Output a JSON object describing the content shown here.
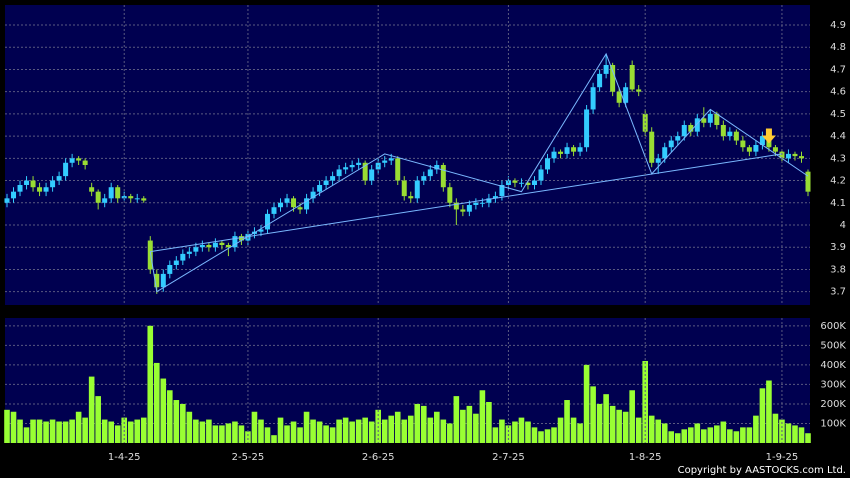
{
  "chart_data": [
    {
      "type": "candlestick",
      "candles": [
        [
          4.1,
          4.14,
          4.08,
          4.12
        ],
        [
          4.12,
          4.17,
          4.1,
          4.15
        ],
        [
          4.15,
          4.2,
          4.13,
          4.18
        ],
        [
          4.18,
          4.22,
          4.16,
          4.2
        ],
        [
          4.2,
          4.22,
          4.15,
          4.17
        ],
        [
          4.17,
          4.19,
          4.13,
          4.15
        ],
        [
          4.15,
          4.19,
          4.13,
          4.17
        ],
        [
          4.17,
          4.22,
          4.15,
          4.2
        ],
        [
          4.2,
          4.24,
          4.18,
          4.22
        ],
        [
          4.22,
          4.3,
          4.2,
          4.28
        ],
        [
          4.28,
          4.32,
          4.26,
          4.3
        ],
        [
          4.3,
          4.31,
          4.27,
          4.29
        ],
        [
          4.29,
          4.3,
          4.25,
          4.27
        ],
        [
          4.17,
          4.19,
          4.13,
          4.15
        ],
        [
          4.15,
          4.16,
          4.07,
          4.1
        ],
        [
          4.1,
          4.14,
          4.08,
          4.12
        ],
        [
          4.12,
          4.19,
          4.1,
          4.17
        ],
        [
          4.17,
          4.18,
          4.1,
          4.12
        ],
        [
          4.12,
          4.15,
          4.11,
          4.13
        ],
        [
          4.13,
          4.14,
          4.1,
          4.12
        ],
        [
          4.12,
          4.14,
          4.1,
          4.12
        ],
        [
          4.12,
          4.13,
          4.1,
          4.11
        ],
        [
          3.93,
          3.95,
          3.78,
          3.8
        ],
        [
          3.78,
          3.8,
          3.69,
          3.72
        ],
        [
          3.72,
          3.8,
          3.7,
          3.78
        ],
        [
          3.78,
          3.84,
          3.76,
          3.82
        ],
        [
          3.82,
          3.86,
          3.8,
          3.84
        ],
        [
          3.84,
          3.89,
          3.82,
          3.87
        ],
        [
          3.87,
          3.9,
          3.85,
          3.88
        ],
        [
          3.88,
          3.92,
          3.86,
          3.9
        ],
        [
          3.9,
          3.93,
          3.88,
          3.91
        ],
        [
          3.91,
          3.92,
          3.88,
          3.9
        ],
        [
          3.9,
          3.94,
          3.88,
          3.92
        ],
        [
          3.92,
          3.93,
          3.89,
          3.91
        ],
        [
          3.91,
          3.92,
          3.86,
          3.9
        ],
        [
          3.9,
          3.97,
          3.88,
          3.95
        ],
        [
          3.95,
          3.96,
          3.91,
          3.93
        ],
        [
          3.93,
          3.98,
          3.91,
          3.96
        ],
        [
          3.96,
          3.99,
          3.94,
          3.97
        ],
        [
          3.97,
          4.0,
          3.95,
          3.98
        ],
        [
          3.98,
          4.07,
          3.96,
          4.05
        ],
        [
          4.05,
          4.1,
          4.03,
          4.08
        ],
        [
          4.08,
          4.12,
          4.06,
          4.1
        ],
        [
          4.1,
          4.14,
          4.08,
          4.12
        ],
        [
          4.12,
          4.13,
          4.06,
          4.08
        ],
        [
          4.08,
          4.1,
          4.05,
          4.07
        ],
        [
          4.07,
          4.14,
          4.05,
          4.12
        ],
        [
          4.12,
          4.17,
          4.1,
          4.15
        ],
        [
          4.15,
          4.2,
          4.13,
          4.18
        ],
        [
          4.18,
          4.22,
          4.16,
          4.2
        ],
        [
          4.2,
          4.24,
          4.18,
          4.22
        ],
        [
          4.22,
          4.27,
          4.2,
          4.25
        ],
        [
          4.25,
          4.28,
          4.23,
          4.26
        ],
        [
          4.26,
          4.29,
          4.24,
          4.27
        ],
        [
          4.27,
          4.3,
          4.25,
          4.28
        ],
        [
          4.28,
          4.29,
          4.18,
          4.2
        ],
        [
          4.2,
          4.27,
          4.18,
          4.25
        ],
        [
          4.25,
          4.3,
          4.23,
          4.28
        ],
        [
          4.28,
          4.31,
          4.26,
          4.29
        ],
        [
          4.29,
          4.32,
          4.27,
          4.3
        ],
        [
          4.3,
          4.31,
          4.18,
          4.2
        ],
        [
          4.2,
          4.22,
          4.11,
          4.13
        ],
        [
          4.13,
          4.15,
          4.1,
          4.12
        ],
        [
          4.12,
          4.22,
          4.1,
          4.2
        ],
        [
          4.2,
          4.24,
          4.18,
          4.22
        ],
        [
          4.22,
          4.27,
          4.2,
          4.25
        ],
        [
          4.25,
          4.29,
          4.23,
          4.27
        ],
        [
          4.27,
          4.28,
          4.15,
          4.17
        ],
        [
          4.17,
          4.19,
          4.08,
          4.1
        ],
        [
          4.1,
          4.12,
          4.0,
          4.07
        ],
        [
          4.07,
          4.09,
          4.04,
          4.06
        ],
        [
          4.06,
          4.11,
          4.04,
          4.09
        ],
        [
          4.09,
          4.12,
          4.07,
          4.1
        ],
        [
          4.1,
          4.12,
          4.08,
          4.1
        ],
        [
          4.1,
          4.14,
          4.08,
          4.12
        ],
        [
          4.12,
          4.15,
          4.1,
          4.13
        ],
        [
          4.13,
          4.2,
          4.11,
          4.18
        ],
        [
          4.18,
          4.22,
          4.16,
          4.2
        ],
        [
          4.2,
          4.21,
          4.17,
          4.19
        ],
        [
          4.19,
          4.21,
          4.17,
          4.19
        ],
        [
          4.19,
          4.2,
          4.16,
          4.18
        ],
        [
          4.18,
          4.22,
          4.16,
          4.2
        ],
        [
          4.2,
          4.27,
          4.18,
          4.25
        ],
        [
          4.25,
          4.32,
          4.23,
          4.3
        ],
        [
          4.3,
          4.35,
          4.28,
          4.33
        ],
        [
          4.33,
          4.34,
          4.3,
          4.32
        ],
        [
          4.32,
          4.37,
          4.3,
          4.35
        ],
        [
          4.35,
          4.36,
          4.31,
          4.33
        ],
        [
          4.33,
          4.37,
          4.31,
          4.35
        ],
        [
          4.35,
          4.54,
          4.33,
          4.52
        ],
        [
          4.52,
          4.64,
          4.5,
          4.62
        ],
        [
          4.62,
          4.7,
          4.6,
          4.68
        ],
        [
          4.68,
          4.77,
          4.66,
          4.72
        ],
        [
          4.72,
          4.73,
          4.58,
          4.6
        ],
        [
          4.6,
          4.62,
          4.53,
          4.55
        ],
        [
          4.55,
          4.64,
          4.53,
          4.62
        ],
        [
          4.72,
          4.74,
          4.6,
          4.61
        ],
        [
          4.61,
          4.63,
          4.58,
          4.6
        ],
        [
          4.5,
          4.52,
          4.4,
          4.42
        ],
        [
          4.42,
          4.44,
          4.26,
          4.28
        ],
        [
          4.28,
          4.32,
          4.23,
          4.3
        ],
        [
          4.3,
          4.37,
          4.28,
          4.35
        ],
        [
          4.35,
          4.4,
          4.33,
          4.38
        ],
        [
          4.38,
          4.42,
          4.36,
          4.4
        ],
        [
          4.4,
          4.47,
          4.38,
          4.45
        ],
        [
          4.45,
          4.46,
          4.4,
          4.42
        ],
        [
          4.42,
          4.5,
          4.4,
          4.48
        ],
        [
          4.48,
          4.53,
          4.44,
          4.46
        ],
        [
          4.46,
          4.52,
          4.44,
          4.5
        ],
        [
          4.5,
          4.51,
          4.43,
          4.45
        ],
        [
          4.45,
          4.47,
          4.38,
          4.4
        ],
        [
          4.4,
          4.44,
          4.38,
          4.42
        ],
        [
          4.42,
          4.43,
          4.36,
          4.38
        ],
        [
          4.38,
          4.4,
          4.33,
          4.35
        ],
        [
          4.35,
          4.36,
          4.31,
          4.33
        ],
        [
          4.33,
          4.38,
          4.31,
          4.36
        ],
        [
          4.36,
          4.42,
          4.34,
          4.4
        ],
        [
          4.4,
          4.41,
          4.33,
          4.35
        ],
        [
          4.35,
          4.36,
          4.31,
          4.33
        ],
        [
          4.33,
          4.34,
          4.28,
          4.3
        ],
        [
          4.3,
          4.34,
          4.28,
          4.32
        ],
        [
          4.32,
          4.33,
          4.29,
          4.31
        ],
        [
          4.31,
          4.33,
          4.28,
          4.3
        ],
        [
          4.24,
          4.25,
          4.13,
          4.15
        ]
      ],
      "up_color": "#33ccff",
      "down_color": "#99dd33",
      "ylim": [
        3.64,
        4.99
      ],
      "yticks": [
        3.7,
        3.8,
        3.9,
        4,
        4.1,
        4.2,
        4.3,
        4.4,
        4.5,
        4.6,
        4.7,
        4.8,
        4.9
      ],
      "grid": true,
      "lines": [
        {
          "color": "#7ab8ff",
          "x": [
            22,
            23,
            58,
            79,
            92,
            99,
            108,
            123
          ],
          "y": [
            3.88,
            3.7,
            4.32,
            4.15,
            4.77,
            4.23,
            4.52,
            4.22
          ]
        },
        {
          "color": "#7ab8ff",
          "x": [
            22,
            119
          ],
          "y": [
            3.88,
            4.32
          ]
        }
      ],
      "markers": [
        {
          "x": 117,
          "y": 4.38,
          "color": "#ffcc33"
        }
      ]
    },
    {
      "type": "bar",
      "categories": [
        null,
        null,
        null,
        null,
        null,
        null,
        null,
        null,
        null,
        null,
        null,
        null,
        null,
        null,
        null,
        null,
        null,
        null,
        "1-4-25",
        null,
        null,
        null,
        null,
        null,
        null,
        null,
        null,
        null,
        null,
        null,
        null,
        null,
        null,
        null,
        null,
        null,
        null,
        "2-5-25",
        null,
        null,
        null,
        null,
        null,
        null,
        null,
        null,
        null,
        null,
        null,
        null,
        null,
        null,
        null,
        null,
        null,
        null,
        null,
        "2-6-25",
        null,
        null,
        null,
        null,
        null,
        null,
        null,
        null,
        null,
        null,
        null,
        null,
        null,
        null,
        null,
        null,
        null,
        null,
        null,
        "2-7-25",
        null,
        null,
        null,
        null,
        null,
        null,
        null,
        null,
        null,
        null,
        null,
        null,
        null,
        null,
        null,
        null,
        null,
        null,
        null,
        null,
        "1-8-25",
        null,
        null,
        null,
        null,
        null,
        null,
        null,
        null,
        null,
        null,
        null,
        null,
        null,
        null,
        null,
        null,
        null,
        null,
        null,
        null,
        "1-9-25",
        null,
        null,
        null,
        null
      ],
      "values": [
        170000,
        160000,
        120000,
        80000,
        120000,
        120000,
        110000,
        120000,
        110000,
        110000,
        120000,
        160000,
        130000,
        340000,
        240000,
        120000,
        110000,
        90000,
        130000,
        110000,
        120000,
        130000,
        600000,
        410000,
        330000,
        270000,
        220000,
        200000,
        160000,
        120000,
        110000,
        120000,
        90000,
        90000,
        100000,
        110000,
        90000,
        60000,
        160000,
        120000,
        80000,
        40000,
        130000,
        90000,
        110000,
        80000,
        160000,
        120000,
        110000,
        90000,
        80000,
        120000,
        130000,
        110000,
        120000,
        130000,
        110000,
        170000,
        120000,
        140000,
        160000,
        120000,
        140000,
        200000,
        190000,
        130000,
        160000,
        120000,
        100000,
        240000,
        170000,
        190000,
        150000,
        270000,
        210000,
        80000,
        120000,
        90000,
        110000,
        130000,
        110000,
        80000,
        60000,
        70000,
        80000,
        130000,
        220000,
        130000,
        100000,
        400000,
        290000,
        200000,
        250000,
        190000,
        170000,
        160000,
        270000,
        130000,
        420000,
        140000,
        120000,
        100000,
        60000,
        50000,
        70000,
        80000,
        100000,
        70000,
        80000,
        90000,
        110000,
        70000,
        60000,
        80000,
        80000,
        140000,
        280000,
        320000,
        150000,
        120000,
        100000,
        90000,
        80000,
        50000
      ],
      "color": "#99ff33",
      "ylim": [
        0,
        640000
      ],
      "yticks": [
        {
          "value": 100000,
          "label": "100K"
        },
        {
          "value": 200000,
          "label": "200K"
        },
        {
          "value": 300000,
          "label": "300K"
        },
        {
          "value": 400000,
          "label": "400K"
        },
        {
          "value": 500000,
          "label": "500K"
        },
        {
          "value": 600000,
          "label": "600K"
        }
      ],
      "grid": true
    }
  ],
  "footer": "Copyright by AASTOCKS.com Ltd."
}
